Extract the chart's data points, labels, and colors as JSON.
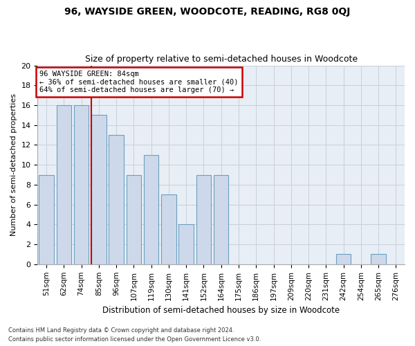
{
  "title": "96, WAYSIDE GREEN, WOODCOTE, READING, RG8 0QJ",
  "subtitle": "Size of property relative to semi-detached houses in Woodcote",
  "xlabel": "Distribution of semi-detached houses by size in Woodcote",
  "ylabel": "Number of semi-detached properties",
  "categories": [
    "51sqm",
    "62sqm",
    "74sqm",
    "85sqm",
    "96sqm",
    "107sqm",
    "119sqm",
    "130sqm",
    "141sqm",
    "152sqm",
    "164sqm",
    "175sqm",
    "186sqm",
    "197sqm",
    "209sqm",
    "220sqm",
    "231sqm",
    "242sqm",
    "254sqm",
    "265sqm",
    "276sqm"
  ],
  "values": [
    9,
    16,
    16,
    15,
    13,
    9,
    11,
    7,
    4,
    9,
    9,
    0,
    0,
    0,
    0,
    0,
    0,
    1,
    0,
    1,
    0
  ],
  "bar_color": "#cdd9ea",
  "bar_edge_color": "#6a9fc0",
  "highlight_bar_index": 3,
  "highlight_line_color": "#cc0000",
  "annotation_text": "96 WAYSIDE GREEN: 84sqm\n← 36% of semi-detached houses are smaller (40)\n64% of semi-detached houses are larger (70) →",
  "annotation_box_color": "#cc0000",
  "ylim": [
    0,
    20
  ],
  "yticks": [
    0,
    2,
    4,
    6,
    8,
    10,
    12,
    14,
    16,
    18,
    20
  ],
  "footer_line1": "Contains HM Land Registry data © Crown copyright and database right 2024.",
  "footer_line2": "Contains public sector information licensed under the Open Government Licence v3.0.",
  "background_color": "#ffffff",
  "plot_bg_color": "#e8eef5",
  "grid_color": "#c8d0da"
}
